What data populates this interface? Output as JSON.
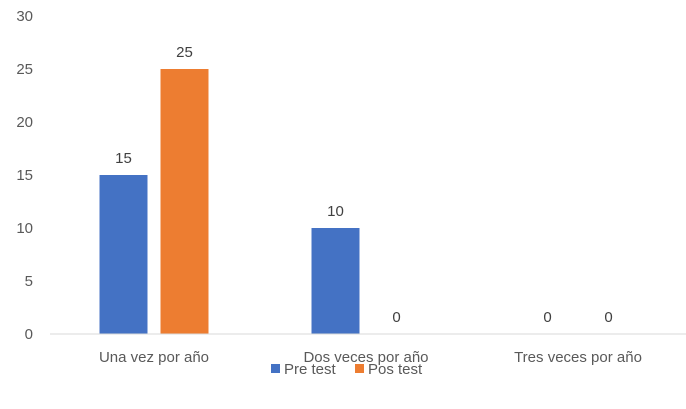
{
  "chart_data": {
    "type": "bar",
    "title": "",
    "xlabel": "",
    "ylabel": "",
    "categories": [
      "Una vez por año",
      "Dos veces por año",
      "Tres veces por año"
    ],
    "series": [
      {
        "name": "Pre test",
        "values": [
          15,
          10,
          0
        ],
        "color": "#4472C4"
      },
      {
        "name": "Pos test",
        "values": [
          25,
          0,
          0
        ],
        "color": "#ED7D31"
      }
    ],
    "ylim": [
      0,
      30
    ],
    "yticks": [
      0,
      5,
      10,
      15,
      20,
      25,
      30
    ],
    "grid": false,
    "data_labels": true,
    "legend": "bottom-center"
  }
}
